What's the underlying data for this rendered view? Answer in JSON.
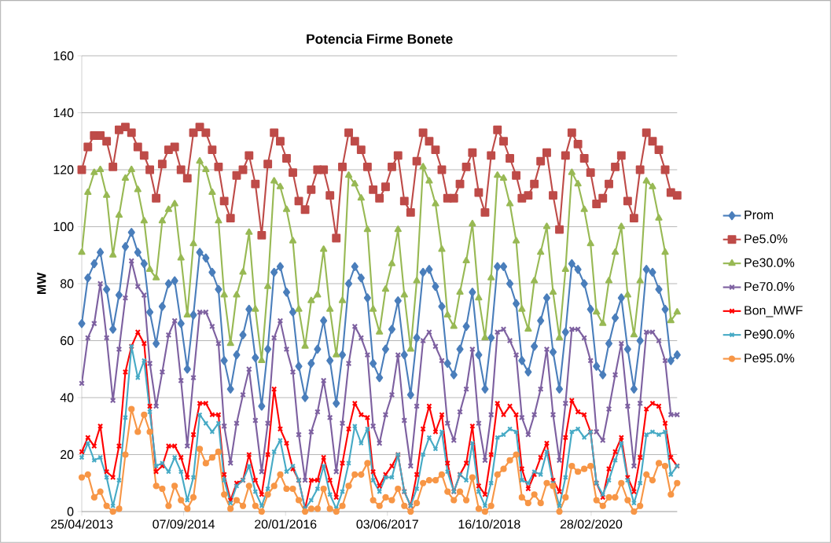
{
  "chart_data": {
    "type": "line",
    "title": "Potencia Firme Bonete",
    "ylabel": "MW",
    "x": [
      "2013-04-25",
      "2013-05-25",
      "2013-06-25",
      "2013-07-25",
      "2013-08-25",
      "2013-09-25",
      "2013-10-25",
      "2013-11-25",
      "2013-12-25",
      "2014-01-25",
      "2014-02-25",
      "2014-03-25",
      "2014-04-25",
      "2014-05-25",
      "2014-06-25",
      "2014-07-25",
      "2014-08-25",
      "2014-09-25",
      "2014-10-25",
      "2014-11-25",
      "2014-12-25",
      "2015-01-25",
      "2015-02-25",
      "2015-03-25",
      "2015-04-25",
      "2015-05-25",
      "2015-06-25",
      "2015-07-25",
      "2015-08-25",
      "2015-09-25",
      "2015-10-25",
      "2015-11-25",
      "2015-12-25",
      "2016-01-25",
      "2016-02-25",
      "2016-03-25",
      "2016-04-25",
      "2016-05-25",
      "2016-06-25",
      "2016-07-25",
      "2016-08-25",
      "2016-09-25",
      "2016-10-25",
      "2016-11-25",
      "2016-12-25",
      "2017-01-25",
      "2017-02-25",
      "2017-03-25",
      "2017-04-25",
      "2017-05-25",
      "2017-06-25",
      "2017-07-25",
      "2017-08-25",
      "2017-09-25",
      "2017-10-25",
      "2017-11-25",
      "2017-12-25",
      "2018-01-25",
      "2018-02-25",
      "2018-03-25",
      "2018-04-25",
      "2018-05-25",
      "2018-06-25",
      "2018-07-25",
      "2018-08-25",
      "2018-09-25",
      "2018-10-25",
      "2018-11-25",
      "2018-12-25",
      "2019-01-25",
      "2019-02-25",
      "2019-03-25",
      "2019-04-25",
      "2019-05-25",
      "2019-06-25",
      "2019-07-25",
      "2019-08-25",
      "2019-09-25",
      "2019-10-25",
      "2019-11-25",
      "2019-12-25",
      "2020-01-25",
      "2020-02-25",
      "2020-03-25",
      "2020-04-25",
      "2020-05-25",
      "2020-06-25",
      "2020-07-25",
      "2020-08-25",
      "2020-09-25",
      "2020-10-25",
      "2020-11-25",
      "2020-12-25",
      "2021-01-25",
      "2021-02-25",
      "2021-03-25",
      "2021-04-25"
    ],
    "xlim": [
      "2013-04-25",
      "2021-04-25"
    ],
    "xticks": [
      {
        "value": "2013-04-25",
        "label": "25/04/2013"
      },
      {
        "value": "2014-09-07",
        "label": "07/09/2014"
      },
      {
        "value": "2016-01-20",
        "label": "20/01/2016"
      },
      {
        "value": "2017-06-03",
        "label": "03/06/2017"
      },
      {
        "value": "2018-10-16",
        "label": "16/10/2018"
      },
      {
        "value": "2020-02-28",
        "label": "28/02/2020"
      }
    ],
    "ylim": [
      0,
      160
    ],
    "yticks": [
      0,
      20,
      40,
      60,
      80,
      100,
      120,
      140,
      160
    ],
    "grid": "y",
    "legend": "right",
    "series": [
      {
        "name": "Prom",
        "color": "#4a7ebb",
        "marker": "diamond",
        "values": [
          66,
          82,
          87,
          91,
          78,
          64,
          76,
          93,
          98,
          91,
          87,
          70,
          59,
          72,
          80,
          81,
          66,
          50,
          69,
          91,
          89,
          84,
          78,
          53,
          43,
          55,
          62,
          71,
          54,
          37,
          57,
          84,
          86,
          77,
          70,
          51,
          40,
          52,
          57,
          67,
          53,
          38,
          55,
          80,
          86,
          82,
          75,
          52,
          47,
          57,
          64,
          74,
          55,
          41,
          61,
          84,
          85,
          79,
          72,
          52,
          48,
          57,
          65,
          77,
          55,
          43,
          61,
          86,
          86,
          80,
          73,
          53,
          49,
          58,
          67,
          75,
          56,
          43,
          63,
          87,
          85,
          80,
          71,
          51,
          48,
          59,
          68,
          75,
          57,
          43,
          60,
          85,
          84,
          78,
          71,
          53,
          55
        ]
      },
      {
        "name": "Pe5.0%",
        "color": "#be4b48",
        "marker": "square",
        "values": [
          120,
          128,
          132,
          132,
          130,
          121,
          134,
          135,
          133,
          128,
          125,
          120,
          110,
          122,
          127,
          128,
          120,
          117,
          133,
          135,
          133,
          127,
          121,
          109,
          103,
          118,
          120,
          125,
          115,
          97,
          122,
          133,
          130,
          124,
          119,
          109,
          106,
          113,
          120,
          120,
          111,
          96,
          121,
          133,
          130,
          127,
          121,
          113,
          110,
          114,
          121,
          125,
          109,
          105,
          123,
          133,
          130,
          127,
          120,
          110,
          110,
          115,
          121,
          126,
          112,
          105,
          125,
          134,
          130,
          124,
          118,
          110,
          111,
          115,
          123,
          126,
          111,
          99,
          125,
          133,
          129,
          124,
          119,
          108,
          110,
          115,
          121,
          125,
          109,
          103,
          120,
          133,
          130,
          127,
          120,
          112,
          111
        ]
      },
      {
        "name": "Pe30.0%",
        "color": "#98b954",
        "marker": "triangle",
        "values": [
          91,
          112,
          119,
          120,
          111,
          90,
          104,
          117,
          120,
          113,
          102,
          85,
          82,
          102,
          106,
          108,
          89,
          69,
          94,
          123,
          120,
          112,
          102,
          76,
          59,
          76,
          84,
          98,
          71,
          53,
          79,
          116,
          114,
          106,
          95,
          71,
          58,
          74,
          76,
          92,
          71,
          55,
          74,
          118,
          115,
          110,
          99,
          71,
          63,
          78,
          87,
          99,
          76,
          57,
          81,
          121,
          116,
          108,
          92,
          69,
          65,
          77,
          88,
          101,
          75,
          61,
          82,
          118,
          117,
          108,
          95,
          71,
          64,
          81,
          91,
          100,
          77,
          61,
          85,
          119,
          115,
          106,
          94,
          70,
          66,
          81,
          91,
          100,
          76,
          62,
          81,
          116,
          114,
          103,
          91,
          67,
          70
        ]
      },
      {
        "name": "Pe70.0%",
        "color": "#7d60a0",
        "marker": "cross",
        "values": [
          45,
          61,
          66,
          80,
          61,
          39,
          57,
          75,
          88,
          79,
          76,
          52,
          37,
          49,
          62,
          67,
          46,
          23,
          47,
          70,
          70,
          65,
          59,
          30,
          17,
          31,
          41,
          50,
          32,
          14,
          31,
          61,
          67,
          57,
          49,
          27,
          11,
          28,
          35,
          46,
          33,
          14,
          31,
          52,
          65,
          61,
          55,
          30,
          24,
          34,
          41,
          55,
          32,
          16,
          37,
          60,
          63,
          58,
          53,
          31,
          25,
          35,
          43,
          57,
          31,
          18,
          34,
          63,
          64,
          60,
          55,
          33,
          27,
          34,
          43,
          57,
          34,
          18,
          38,
          64,
          64,
          61,
          53,
          28,
          25,
          36,
          48,
          59,
          37,
          16,
          38,
          63,
          63,
          60,
          53,
          34,
          34
        ]
      },
      {
        "name": "Bon_MWF",
        "color": "#ff0000",
        "marker": "cross",
        "values": [
          21,
          26,
          23,
          30,
          14,
          12,
          23,
          49,
          58,
          63,
          59,
          37,
          14,
          16,
          23,
          23,
          19,
          12,
          27,
          38,
          38,
          34,
          34,
          13,
          4,
          10,
          11,
          20,
          11,
          6,
          20,
          43,
          29,
          24,
          15,
          11,
          1,
          11,
          11,
          19,
          11,
          5,
          17,
          29,
          38,
          34,
          33,
          14,
          9,
          13,
          16,
          20,
          7,
          2,
          13,
          29,
          37,
          28,
          34,
          17,
          7,
          13,
          17,
          30,
          9,
          6,
          20,
          38,
          34,
          37,
          34,
          15,
          8,
          13,
          19,
          24,
          11,
          7,
          26,
          39,
          35,
          34,
          28,
          10,
          5,
          15,
          21,
          26,
          12,
          7,
          19,
          36,
          38,
          37,
          31,
          19,
          16
        ]
      },
      {
        "name": "Pe90.0%",
        "color": "#46aac5",
        "marker": "cross",
        "values": [
          19,
          24,
          18,
          19,
          12,
          2,
          11,
          33,
          58,
          47,
          53,
          35,
          16,
          17,
          14,
          19,
          14,
          4,
          12,
          34,
          31,
          28,
          31,
          11,
          3,
          9,
          11,
          16,
          7,
          2,
          8,
          21,
          25,
          14,
          16,
          11,
          1,
          4,
          8,
          16,
          6,
          1,
          7,
          17,
          30,
          24,
          29,
          11,
          7,
          12,
          12,
          20,
          7,
          2,
          8,
          20,
          26,
          22,
          28,
          14,
          7,
          13,
          11,
          24,
          7,
          2,
          10,
          26,
          27,
          29,
          28,
          11,
          10,
          14,
          13,
          21,
          10,
          2,
          12,
          28,
          29,
          26,
          28,
          10,
          6,
          11,
          18,
          24,
          11,
          3,
          10,
          27,
          28,
          27,
          28,
          13,
          16
        ]
      },
      {
        "name": "Pe95.0%",
        "color": "#f79646",
        "marker": "circle",
        "values": [
          12,
          13,
          5,
          7,
          2,
          0,
          1,
          20,
          36,
          28,
          34,
          28,
          9,
          8,
          2,
          9,
          4,
          1,
          5,
          22,
          17,
          19,
          21,
          6,
          1,
          4,
          2,
          9,
          2,
          0,
          6,
          9,
          13,
          8,
          8,
          4,
          0,
          1,
          1,
          8,
          1,
          0,
          2,
          9,
          13,
          13,
          17,
          4,
          2,
          5,
          4,
          8,
          2,
          0,
          3,
          10,
          11,
          11,
          13,
          7,
          4,
          7,
          4,
          12,
          1,
          0,
          2,
          13,
          15,
          18,
          20,
          5,
          3,
          6,
          3,
          10,
          9,
          0,
          5,
          16,
          14,
          15,
          16,
          4,
          2,
          5,
          5,
          10,
          4,
          0,
          2,
          13,
          11,
          17,
          16,
          6,
          10
        ]
      }
    ]
  }
}
